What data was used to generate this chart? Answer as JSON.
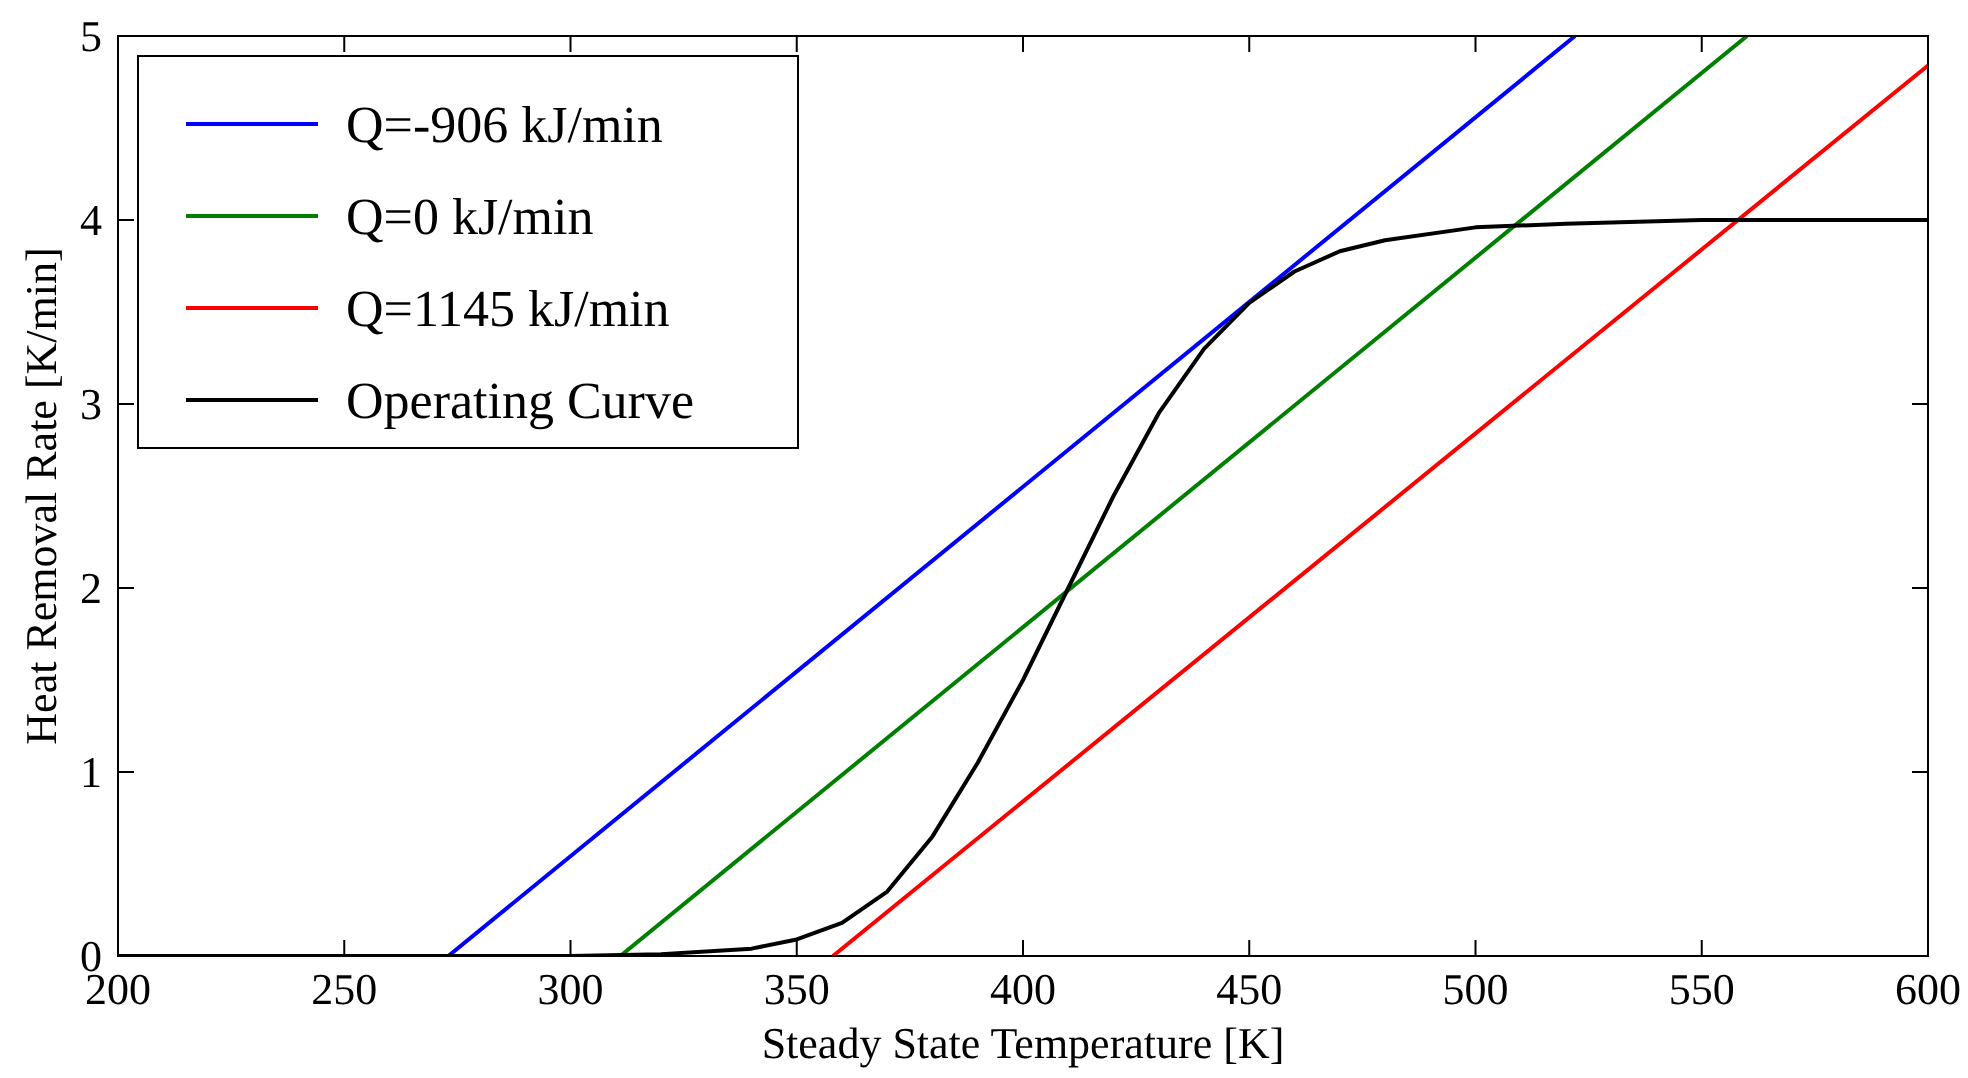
{
  "chart_data": {
    "type": "line",
    "xlabel": "Steady State Temperature [K]",
    "ylabel": "Heat Removal Rate [K/min]",
    "xlim": [
      200,
      600
    ],
    "ylim": [
      0,
      5
    ],
    "xticks": [
      200,
      250,
      300,
      350,
      400,
      450,
      500,
      550,
      600
    ],
    "yticks": [
      0,
      1,
      2,
      3,
      4,
      5
    ],
    "grid": false,
    "legend": "top left",
    "line_style": "solid",
    "marker": "none",
    "series": [
      {
        "name": "Q=-906 kJ/min",
        "color": "#0000ff",
        "x": [
          273,
          522
        ],
        "values": [
          0,
          5
        ]
      },
      {
        "name": "Q=0 kJ/min",
        "color": "#008000",
        "x": [
          311,
          560
        ],
        "values": [
          0,
          5
        ]
      },
      {
        "name": "Q=1145 kJ/min",
        "color": "#ff0000",
        "x": [
          358,
          600
        ],
        "values": [
          0,
          4.84
        ]
      },
      {
        "name": "Operating Curve",
        "color": "#000000",
        "x": [
          200,
          250,
          300,
          320,
          340,
          350,
          360,
          370,
          380,
          390,
          400,
          410,
          420,
          430,
          440,
          450,
          460,
          470,
          480,
          500,
          520,
          550,
          600
        ],
        "values": [
          0,
          0,
          0,
          0.01,
          0.04,
          0.09,
          0.18,
          0.35,
          0.65,
          1.05,
          1.5,
          2.0,
          2.5,
          2.95,
          3.3,
          3.55,
          3.72,
          3.83,
          3.89,
          3.96,
          3.98,
          4.0,
          4.0
        ]
      }
    ]
  }
}
